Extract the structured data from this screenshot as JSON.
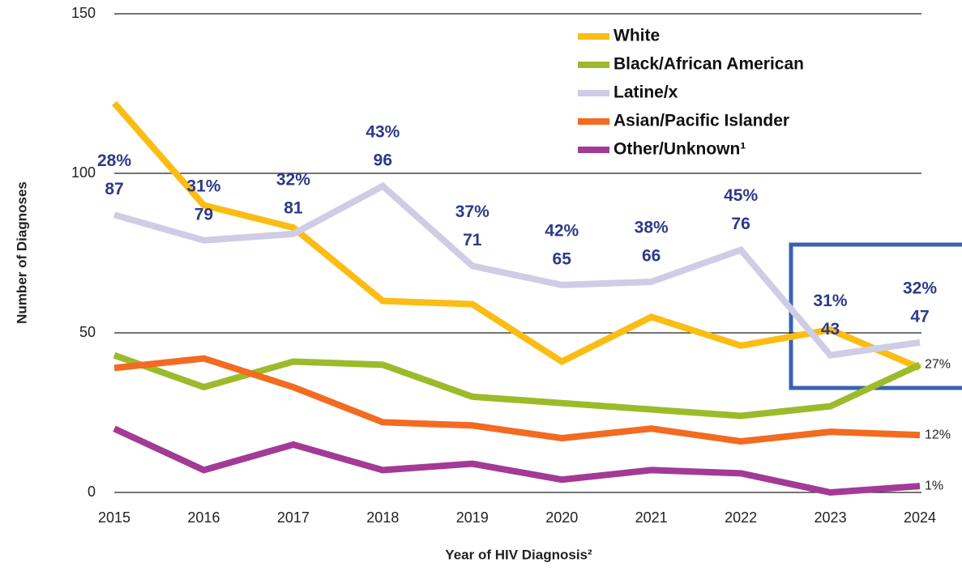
{
  "chart_data": {
    "type": "line",
    "x_label": "Year of HIV Diagnosis²",
    "y_label": "Number of Diagnoses",
    "categories": [
      "2015",
      "2016",
      "2017",
      "2018",
      "2019",
      "2020",
      "2021",
      "2022",
      "2023",
      "2024"
    ],
    "series": [
      {
        "name": "White",
        "color": "#fbbd14",
        "values": [
          122,
          90,
          83,
          60,
          59,
          41,
          55,
          46,
          51,
          39
        ]
      },
      {
        "name": "Black/African American",
        "color": "#9bbb2a",
        "values": [
          43,
          33,
          41,
          40,
          30,
          28,
          26,
          24,
          27,
          40
        ],
        "end_label": "27%"
      },
      {
        "name": "Latine/x",
        "color": "#cfcce6",
        "values": [
          87,
          79,
          81,
          96,
          71,
          65,
          66,
          76,
          43,
          47
        ],
        "share_labels": [
          "28%",
          "31%",
          "32%",
          "43%",
          "37%",
          "42%",
          "38%",
          "45%",
          "31%",
          "32%"
        ]
      },
      {
        "name": "Asian/Pacific Islander",
        "color": "#f26b21",
        "values": [
          39,
          42,
          33,
          22,
          21,
          17,
          20,
          16,
          19,
          18
        ],
        "end_label": "12%"
      },
      {
        "name": "Other/Unknown¹",
        "color": "#a23a96",
        "values": [
          20,
          7,
          15,
          7,
          9,
          4,
          7,
          6,
          0,
          2
        ],
        "end_label": "1%"
      }
    ],
    "ylim": [
      0,
      150
    ],
    "yticks": [
      0,
      50,
      100,
      150
    ],
    "grid": true
  }
}
